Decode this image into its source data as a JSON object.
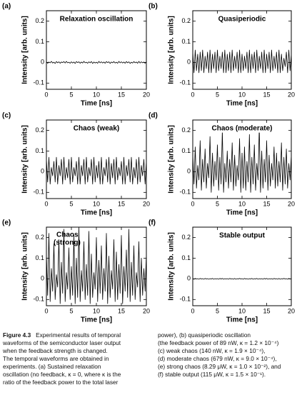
{
  "chart_data": [
    {
      "type": "line",
      "panel_label": "(a)",
      "title": "Relaxation oscillation",
      "xlabel": "Time [ns]",
      "ylabel": "Intensity [arb. units]",
      "color": "#000000",
      "xlim": [
        0,
        20
      ],
      "xticks": [
        0,
        5,
        10,
        15,
        20
      ],
      "ylim": [
        -0.13,
        0.25
      ],
      "yticks": [
        -0.1,
        0,
        0.1,
        0.2
      ],
      "x": [
        0,
        0.25,
        0.5,
        0.75,
        1,
        1.25,
        1.5,
        1.75,
        2,
        2.25,
        2.5,
        2.75,
        3,
        3.25,
        3.5,
        3.75,
        4,
        4.25,
        4.5,
        4.75,
        5,
        5.25,
        5.5,
        5.75,
        6,
        6.25,
        6.5,
        6.75,
        7,
        7.25,
        7.5,
        7.75,
        8,
        8.25,
        8.5,
        8.75,
        9,
        9.25,
        9.5,
        9.75,
        10,
        10.25,
        10.5,
        10.75,
        11,
        11.25,
        11.5,
        11.75,
        12,
        12.25,
        12.5,
        12.75,
        13,
        13.25,
        13.5,
        13.75,
        14,
        14.25,
        14.5,
        14.75,
        15,
        15.25,
        15.5,
        15.75,
        16,
        16.25,
        16.5,
        16.75,
        17,
        17.25,
        17.5,
        17.75,
        18,
        18.25,
        18.5,
        18.75,
        19,
        19.25,
        19.5,
        19.75,
        20
      ],
      "values": [
        0.003,
        -0.004,
        0.002,
        -0.002,
        0.005,
        -0.003,
        0.001,
        -0.005,
        0.004,
        -0.002,
        0.003,
        -0.004,
        0.002,
        -0.001,
        0.004,
        -0.003,
        0.005,
        -0.002,
        0.001,
        -0.004,
        0.003,
        -0.003,
        0.002,
        -0.005,
        0.004,
        -0.001,
        0.003,
        -0.004,
        0.002,
        -0.003,
        0.005,
        -0.002,
        0.001,
        -0.004,
        0.003,
        -0.002,
        0.004,
        -0.005,
        0.002,
        -0.003,
        0.001,
        -0.004,
        0.005,
        -0.002,
        0.003,
        -0.003,
        0.002,
        -0.004,
        0.004,
        -0.001,
        0.003,
        -0.005,
        0.002,
        -0.002,
        0.004,
        -0.003,
        0.001,
        -0.004,
        0.005,
        -0.002,
        0.003,
        -0.003,
        0.002,
        -0.004,
        0.004,
        -0.002,
        0.003,
        -0.005,
        0.001,
        -0.003,
        0.004,
        -0.002,
        0.002,
        -0.004,
        0.005,
        -0.003,
        0.003,
        -0.002,
        0.002,
        -0.004,
        0.003
      ]
    },
    {
      "type": "line",
      "panel_label": "(b)",
      "title": "Quasiperiodic",
      "xlabel": "Time [ns]",
      "ylabel": "Intensity [arb. units]",
      "color": "#000000",
      "xlim": [
        0,
        20
      ],
      "xticks": [
        0,
        5,
        10,
        15,
        20
      ],
      "ylim": [
        -0.13,
        0.25
      ],
      "yticks": [
        -0.1,
        0,
        0.1,
        0.2
      ],
      "x": [
        0,
        0.25,
        0.5,
        0.75,
        1,
        1.25,
        1.5,
        1.75,
        2,
        2.25,
        2.5,
        2.75,
        3,
        3.25,
        3.5,
        3.75,
        4,
        4.25,
        4.5,
        4.75,
        5,
        5.25,
        5.5,
        5.75,
        6,
        6.25,
        6.5,
        6.75,
        7,
        7.25,
        7.5,
        7.75,
        8,
        8.25,
        8.5,
        8.75,
        9,
        9.25,
        9.5,
        9.75,
        10,
        10.25,
        10.5,
        10.75,
        11,
        11.25,
        11.5,
        11.75,
        12,
        12.25,
        12.5,
        12.75,
        13,
        13.25,
        13.5,
        13.75,
        14,
        14.25,
        14.5,
        14.75,
        15,
        15.25,
        15.5,
        15.75,
        16,
        16.25,
        16.5,
        16.75,
        17,
        17.25,
        17.5,
        17.75,
        18,
        18.25,
        18.5,
        18.75,
        19,
        19.25,
        19.5,
        19.75,
        20
      ],
      "values": [
        0.05,
        -0.05,
        0.06,
        -0.04,
        0.04,
        -0.05,
        0.05,
        -0.04,
        0.06,
        -0.05,
        0.03,
        -0.03,
        0.05,
        -0.05,
        0.06,
        -0.05,
        0.04,
        -0.03,
        0.05,
        -0.05,
        0.06,
        -0.04,
        0.03,
        -0.03,
        0.05,
        -0.05,
        0.06,
        -0.05,
        0.04,
        -0.04,
        0.05,
        -0.05,
        0.06,
        -0.04,
        0.03,
        -0.03,
        0.05,
        -0.05,
        0.06,
        -0.05,
        0.04,
        -0.04,
        0.03,
        -0.03,
        0.05,
        -0.05,
        0.06,
        -0.05,
        0.04,
        -0.03,
        0.05,
        -0.05,
        0.06,
        -0.04,
        0.03,
        -0.03,
        0.05,
        -0.05,
        0.06,
        -0.05,
        0.04,
        -0.03,
        0.05,
        -0.05,
        0.06,
        -0.04,
        0.03,
        -0.03,
        0.05,
        -0.05,
        0.06,
        -0.05,
        0.04,
        -0.04,
        0.02,
        -0.02,
        0.05,
        -0.05,
        0.06,
        -0.04,
        0.04
      ]
    },
    {
      "type": "line",
      "panel_label": "(c)",
      "title": "Chaos (weak)",
      "xlabel": "Time [ns]",
      "ylabel": "Intensity [arb. units]",
      "color": "#000000",
      "xlim": [
        0,
        20
      ],
      "xticks": [
        0,
        5,
        10,
        15,
        20
      ],
      "ylim": [
        -0.13,
        0.25
      ],
      "yticks": [
        -0.1,
        0,
        0.1,
        0.2
      ],
      "x": [
        0,
        0.25,
        0.5,
        0.75,
        1,
        1.25,
        1.5,
        1.75,
        2,
        2.25,
        2.5,
        2.75,
        3,
        3.25,
        3.5,
        3.75,
        4,
        4.25,
        4.5,
        4.75,
        5,
        5.25,
        5.5,
        5.75,
        6,
        6.25,
        6.5,
        6.75,
        7,
        7.25,
        7.5,
        7.75,
        8,
        8.25,
        8.5,
        8.75,
        9,
        9.25,
        9.5,
        9.75,
        10,
        10.25,
        10.5,
        10.75,
        11,
        11.25,
        11.5,
        11.75,
        12,
        12.25,
        12.5,
        12.75,
        13,
        13.25,
        13.5,
        13.75,
        14,
        14.25,
        14.5,
        14.75,
        15,
        15.25,
        15.5,
        15.75,
        16,
        16.25,
        16.5,
        16.75,
        17,
        17.25,
        17.5,
        17.75,
        18,
        18.25,
        18.5,
        18.75,
        19,
        19.25,
        19.5,
        19.75,
        20
      ],
      "values": [
        0.06,
        -0.05,
        0.07,
        -0.06,
        0.02,
        -0.02,
        0.05,
        -0.05,
        0.07,
        -0.06,
        0.03,
        -0.02,
        0.06,
        -0.06,
        0.07,
        -0.04,
        0.02,
        -0.03,
        0.06,
        -0.06,
        0.07,
        -0.05,
        0.02,
        -0.02,
        0.05,
        -0.06,
        0.07,
        -0.06,
        0.03,
        -0.02,
        0.06,
        -0.06,
        0.07,
        -0.05,
        0.02,
        -0.02,
        0.06,
        -0.06,
        0.07,
        -0.05,
        0.03,
        -0.03,
        0.05,
        -0.06,
        0.07,
        -0.06,
        0.02,
        -0.02,
        0.06,
        -0.05,
        0.07,
        -0.06,
        0.04,
        -0.03,
        0.06,
        -0.06,
        0.07,
        -0.04,
        0.02,
        -0.02,
        0.05,
        -0.06,
        0.07,
        -0.06,
        0.03,
        -0.02,
        0.06,
        -0.05,
        0.07,
        -0.06,
        0.02,
        -0.03,
        0.06,
        -0.06,
        0.07,
        -0.05,
        0.03,
        -0.02,
        0.06,
        -0.06,
        0.05
      ]
    },
    {
      "type": "line",
      "panel_label": "(d)",
      "title": "Chaos (moderate)",
      "xlabel": "Time [ns]",
      "ylabel": "Intensity [arb. units]",
      "color": "#000000",
      "xlim": [
        0,
        20
      ],
      "xticks": [
        0,
        5,
        10,
        15,
        20
      ],
      "ylim": [
        -0.13,
        0.25
      ],
      "yticks": [
        -0.1,
        0,
        0.1,
        0.2
      ],
      "x": [
        0,
        0.25,
        0.5,
        0.75,
        1,
        1.25,
        1.5,
        1.75,
        2,
        2.25,
        2.5,
        2.75,
        3,
        3.25,
        3.5,
        3.75,
        4,
        4.25,
        4.5,
        4.75,
        5,
        5.25,
        5.5,
        5.75,
        6,
        6.25,
        6.5,
        6.75,
        7,
        7.25,
        7.5,
        7.75,
        8,
        8.25,
        8.5,
        8.75,
        9,
        9.25,
        9.5,
        9.75,
        10,
        10.25,
        10.5,
        10.75,
        11,
        11.25,
        11.5,
        11.75,
        12,
        12.25,
        12.5,
        12.75,
        13,
        13.25,
        13.5,
        13.75,
        14,
        14.25,
        14.5,
        14.75,
        15,
        15.25,
        15.5,
        15.75,
        16,
        16.25,
        16.5,
        16.75,
        17,
        17.25,
        17.5,
        17.75,
        18,
        18.25,
        18.5,
        18.75,
        19,
        19.25,
        19.5,
        19.75,
        20
      ],
      "values": [
        0.08,
        -0.06,
        0.12,
        -0.08,
        0.03,
        -0.04,
        0.15,
        -0.09,
        0.06,
        -0.05,
        0.11,
        -0.08,
        0.04,
        -0.03,
        0.17,
        -0.1,
        0.09,
        -0.07,
        0.05,
        -0.04,
        0.13,
        -0.09,
        0.07,
        -0.06,
        0.2,
        -0.1,
        0.04,
        -0.05,
        0.1,
        -0.08,
        0.06,
        -0.05,
        0.14,
        -0.09,
        0.08,
        -0.07,
        0.03,
        -0.04,
        0.16,
        -0.1,
        0.09,
        -0.08,
        0.12,
        -0.09,
        0.05,
        -0.05,
        0.18,
        -0.1,
        0.07,
        -0.06,
        0.13,
        -0.09,
        0.04,
        -0.04,
        0.22,
        -0.1,
        0.1,
        -0.08,
        0.06,
        -0.05,
        0.15,
        -0.09,
        0.08,
        -0.07,
        0.04,
        -0.04,
        0.12,
        -0.08,
        0.09,
        -0.07,
        0.05,
        -0.05,
        0.14,
        -0.09,
        0.07,
        -0.06,
        0.11,
        -0.08,
        0.04,
        -0.04,
        0.08
      ]
    },
    {
      "type": "line",
      "panel_label": "(e)",
      "title": [
        "Chaos",
        "(strong)"
      ],
      "xlabel": "Time [ns]",
      "ylabel": "Intensity [arb. units]",
      "color": "#000000",
      "xlim": [
        0,
        20
      ],
      "xticks": [
        0,
        5,
        10,
        15,
        20
      ],
      "ylim": [
        -0.13,
        0.25
      ],
      "yticks": [
        -0.1,
        0,
        0.1,
        0.2
      ],
      "x": [
        0,
        0.25,
        0.5,
        0.75,
        1,
        1.25,
        1.5,
        1.75,
        2,
        2.25,
        2.5,
        2.75,
        3,
        3.25,
        3.5,
        3.75,
        4,
        4.25,
        4.5,
        4.75,
        5,
        5.25,
        5.5,
        5.75,
        6,
        6.25,
        6.5,
        6.75,
        7,
        7.25,
        7.5,
        7.75,
        8,
        8.25,
        8.5,
        8.75,
        9,
        9.25,
        9.5,
        9.75,
        10,
        10.25,
        10.5,
        10.75,
        11,
        11.25,
        11.5,
        11.75,
        12,
        12.25,
        12.5,
        12.75,
        13,
        13.25,
        13.5,
        13.75,
        14,
        14.25,
        14.5,
        14.75,
        15,
        15.25,
        15.5,
        15.75,
        16,
        16.25,
        16.5,
        16.75,
        17,
        17.25,
        17.5,
        17.75,
        18,
        18.25,
        18.5,
        18.75,
        19,
        19.25,
        19.5,
        19.75,
        20
      ],
      "values": [
        0.12,
        -0.08,
        0.22,
        -0.11,
        0.05,
        -0.06,
        0.17,
        -0.1,
        0.02,
        -0.04,
        0.19,
        -0.12,
        0.08,
        -0.07,
        0.24,
        -0.11,
        0.03,
        -0.05,
        0.15,
        -0.1,
        0.06,
        -0.08,
        0.21,
        -0.12,
        0.1,
        -0.09,
        0.25,
        -0.11,
        0.04,
        -0.06,
        0.18,
        -0.1,
        0.07,
        -0.08,
        0.23,
        -0.12,
        0.12,
        -0.09,
        0.03,
        -0.05,
        0.2,
        -0.11,
        0.09,
        -0.07,
        0.16,
        -0.1,
        0.05,
        -0.06,
        0.22,
        -0.12,
        0.11,
        -0.09,
        0.04,
        -0.05,
        0.19,
        -0.11,
        0.13,
        -0.1,
        0.07,
        -0.07,
        0.21,
        -0.12,
        0.06,
        -0.06,
        0.14,
        -0.09,
        0.24,
        -0.11,
        0.08,
        -0.08,
        0.16,
        -0.1,
        0.03,
        -0.04,
        0.18,
        -0.11,
        0.1,
        -0.08,
        0.05,
        -0.06,
        0.12
      ]
    },
    {
      "type": "line",
      "panel_label": "(f)",
      "title": "Stable output",
      "xlabel": "Time [ns]",
      "ylabel": "Intensity [arb. units]",
      "color": "#000000",
      "xlim": [
        0,
        20
      ],
      "xticks": [
        0,
        5,
        10,
        15,
        20
      ],
      "ylim": [
        -0.13,
        0.25
      ],
      "yticks": [
        -0.1,
        0,
        0.1,
        0.2
      ],
      "x": [
        0,
        0.25,
        0.5,
        0.75,
        1,
        1.25,
        1.5,
        1.75,
        2,
        2.25,
        2.5,
        2.75,
        3,
        3.25,
        3.5,
        3.75,
        4,
        4.25,
        4.5,
        4.75,
        5,
        5.25,
        5.5,
        5.75,
        6,
        6.25,
        6.5,
        6.75,
        7,
        7.25,
        7.5,
        7.75,
        8,
        8.25,
        8.5,
        8.75,
        9,
        9.25,
        9.5,
        9.75,
        10,
        10.25,
        10.5,
        10.75,
        11,
        11.25,
        11.5,
        11.75,
        12,
        12.25,
        12.5,
        12.75,
        13,
        13.25,
        13.5,
        13.75,
        14,
        14.25,
        14.5,
        14.75,
        15,
        15.25,
        15.5,
        15.75,
        16,
        16.25,
        16.5,
        16.75,
        17,
        17.25,
        17.5,
        17.75,
        18,
        18.25,
        18.5,
        18.75,
        19,
        19.25,
        19.5,
        19.75,
        20
      ],
      "values": [
        0.001,
        -0.002,
        0.002,
        -0.001,
        0.001,
        -0.002,
        0.002,
        -0.001,
        0.001,
        -0.002,
        0.002,
        -0.001,
        0.001,
        -0.002,
        0.001,
        -0.001,
        0.002,
        -0.002,
        0.001,
        -0.001,
        0.001,
        -0.002,
        0.002,
        -0.001,
        0.002,
        -0.002,
        0.001,
        -0.001,
        0.001,
        -0.002,
        0.002,
        -0.001,
        0.001,
        -0.002,
        0.002,
        -0.002,
        0.001,
        -0.001,
        0.002,
        -0.001,
        0.001,
        -0.002,
        0.002,
        -0.001,
        0.001,
        -0.002,
        0.001,
        -0.001,
        0.002,
        -0.002,
        0.001,
        -0.001,
        0.002,
        -0.002,
        0.001,
        -0.001,
        0.001,
        -0.002,
        0.002,
        -0.001,
        0.002,
        -0.002,
        0.001,
        -0.001,
        0.001,
        -0.002,
        0.002,
        -0.001,
        0.001,
        -0.002,
        0.002,
        -0.002,
        0.001,
        -0.001,
        0.002,
        -0.001,
        0.001,
        -0.002,
        0.002,
        -0.001,
        0.001
      ]
    }
  ],
  "caption": {
    "label": "Figure 4.3",
    "left": [
      "Experimental results of temporal",
      "waveforms of the semiconductor laser output",
      "when the feedback strength is changed.",
      "The temporal waveforms are obtained in",
      "experiments. (a) Sustained relaxation",
      "oscillation (no feedback, κ = 0, where κ is the",
      "ratio of the feedback power to the total laser"
    ],
    "right": [
      "power), (b) quasiperiodic oscillation",
      "(the feedback power of 89 nW, κ = 1.2 × 10⁻⁴)",
      "(c) weak chaos (140 nW, κ = 1.9 × 10⁻⁴),",
      "(d) moderate chaos (679 nW, κ = 9.0 × 10⁻⁴),",
      "(e) strong chaos (8.29 μW, κ = 1.0 × 10⁻²), and",
      "(f) stable output (115 μW, κ = 1.5 × 10⁻¹)."
    ]
  }
}
